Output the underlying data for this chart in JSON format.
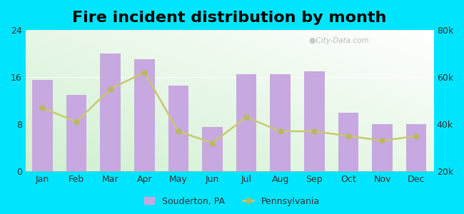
{
  "title": "Fire incident distribution by month",
  "months": [
    "Jan",
    "Feb",
    "Mar",
    "Apr",
    "May",
    "Jun",
    "Jul",
    "Aug",
    "Sep",
    "Oct",
    "Nov",
    "Dec"
  ],
  "souderton_values": [
    15.5,
    13.0,
    20.0,
    19.0,
    14.5,
    7.5,
    16.5,
    16.5,
    17.0,
    10.0,
    8.0,
    8.0
  ],
  "pa_right_axis": [
    47000,
    41000,
    55000,
    62000,
    37000,
    32000,
    43000,
    37000,
    37000,
    35000,
    33000,
    35000
  ],
  "bar_color": "#c8a8e0",
  "bar_edge_color": "none",
  "line_color": "#c8c870",
  "line_marker_color": "#b8b860",
  "outer_background": "#00e5ff",
  "left_ylim": [
    0,
    24
  ],
  "left_yticks": [
    0,
    8,
    16,
    24
  ],
  "right_ylim": [
    20000,
    80000
  ],
  "right_yticks": [
    20000,
    40000,
    60000,
    80000
  ],
  "right_yticklabels": [
    "20k",
    "40k",
    "60k",
    "80k"
  ],
  "title_fontsize": 16,
  "watermark": "City-Data.com"
}
